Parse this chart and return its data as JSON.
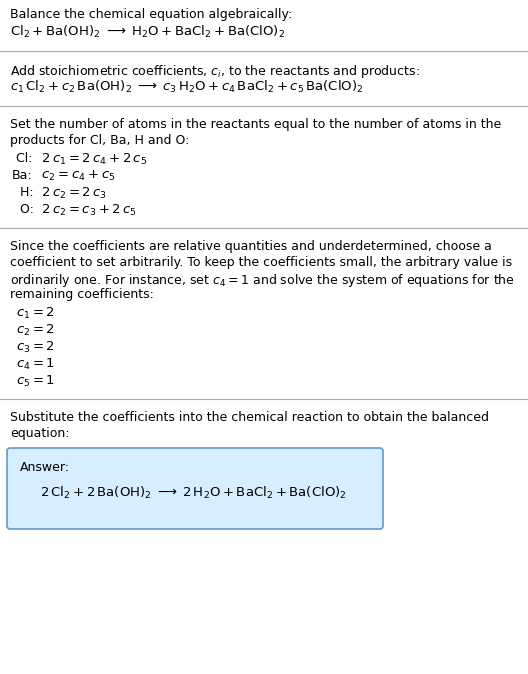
{
  "bg_color": "#ffffff",
  "text_color": "#000000",
  "fs": 9.0,
  "fs_math": 9.5,
  "title": "Balance the chemical equation algebraically:",
  "line1": "$\\mathrm{Cl_2 + Ba(OH)_2 \\;\\longrightarrow\\; H_2O + BaCl_2 + Ba(ClO)_2}$",
  "sec2_hdr": "Add stoichiometric coefficients, $c_i$, to the reactants and products:",
  "sec2_eq": "$c_1\\,\\mathrm{Cl_2} + c_2\\,\\mathrm{Ba(OH)_2} \\;\\longrightarrow\\; c_3\\,\\mathrm{H_2O} + c_4\\,\\mathrm{BaCl_2} + c_5\\,\\mathrm{Ba(ClO)_2}$",
  "sec3_hdr1": "Set the number of atoms in the reactants equal to the number of atoms in the",
  "sec3_hdr2": "products for Cl, Ba, H and O:",
  "sec3_lines": [
    [
      " Cl:",
      "$\\;2\\,c_1 = 2\\,c_4 + 2\\,c_5$"
    ],
    [
      "Ba:",
      "$\\;c_2 = c_4 + c_5$"
    ],
    [
      "  H:",
      "$\\;2\\,c_2 = 2\\,c_3$"
    ],
    [
      "  O:",
      "$\\;2\\,c_2 = c_3 + 2\\,c_5$"
    ]
  ],
  "sec4_hdr1": "Since the coefficients are relative quantities and underdetermined, choose a",
  "sec4_hdr2": "coefficient to set arbitrarily. To keep the coefficients small, the arbitrary value is",
  "sec4_hdr3": "ordinarily one. For instance, set $c_4 = 1$ and solve the system of equations for the",
  "sec4_hdr4": "remaining coefficients:",
  "sec4_lines": [
    "$c_1 = 2$",
    "$c_2 = 2$",
    "$c_3 = 2$",
    "$c_4 = 1$",
    "$c_5 = 1$"
  ],
  "sec5_hdr1": "Substitute the coefficients into the chemical reaction to obtain the balanced",
  "sec5_hdr2": "equation:",
  "answer_label": "Answer:",
  "answer_eq": "$2\\,\\mathrm{Cl_2} + 2\\,\\mathrm{Ba(OH)_2} \\;\\longrightarrow\\; 2\\,\\mathrm{H_2O} + \\mathrm{BaCl_2} + \\mathrm{Ba(ClO)_2}$",
  "box_facecolor": "#d6eeff",
  "box_edgecolor": "#6699cc",
  "hline_color": "#aaaaaa"
}
